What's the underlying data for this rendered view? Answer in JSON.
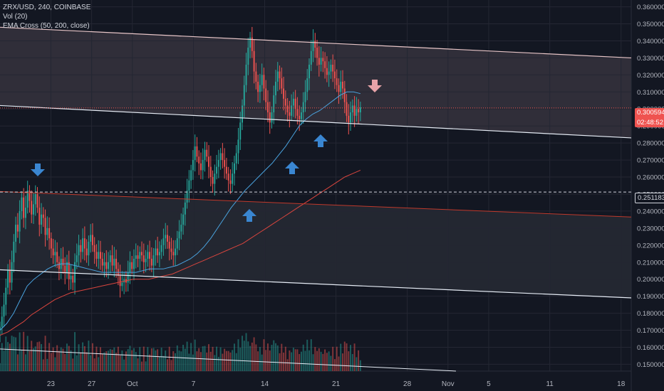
{
  "legend": {
    "symbol_line": "ZRX/USD, 240, COINBASE",
    "vol_line": "Vol (20)",
    "ema_line": "EMA Cross (50, 200, close)"
  },
  "price_badge": {
    "price": "0.300594",
    "countdown": "02:48:52"
  },
  "hline_badge": "0.251183",
  "colors": {
    "bg": "#131722",
    "up": "#26a69a",
    "down": "#ef5350",
    "ema50": "#4aa3df",
    "ema200": "#d9453e",
    "arrow_up": "#3a86d1",
    "arrow_down": "#e8a3a8",
    "channel_upper": "#e8c6c8",
    "channel_lower": "#e6ecf5"
  },
  "chart_data": {
    "type": "candlestick",
    "title": "ZRX/USD, 240, COINBASE",
    "interval": "240",
    "exchange": "COINBASE",
    "ylim": [
      0.146,
      0.364
    ],
    "y_ticks": [
      "0.150000",
      "0.160000",
      "0.170000",
      "0.180000",
      "0.190000",
      "0.200000",
      "0.210000",
      "0.220000",
      "0.230000",
      "0.240000",
      "0.250000",
      "0.260000",
      "0.270000",
      "0.280000",
      "0.290000",
      "0.300000",
      "0.310000",
      "0.320000",
      "0.330000",
      "0.340000",
      "0.350000",
      "0.360000"
    ],
    "x_ticks": [
      "23",
      "27",
      "Oct",
      "7",
      "14",
      "21",
      "28",
      "Nov",
      "5",
      "11",
      "18"
    ],
    "x_tick_days": [
      -8,
      -4,
      0,
      6,
      13,
      20,
      27,
      31,
      35,
      41,
      48
    ],
    "x_range_days": [
      -13,
      49
    ],
    "last_price": 0.300594,
    "horizontal_line": 0.251183,
    "closes": [
      0.172,
      0.178,
      0.185,
      0.195,
      0.205,
      0.198,
      0.21,
      0.222,
      0.232,
      0.228,
      0.24,
      0.248,
      0.236,
      0.242,
      0.252,
      0.246,
      0.238,
      0.244,
      0.25,
      0.242,
      0.232,
      0.238,
      0.236,
      0.226,
      0.23,
      0.224,
      0.218,
      0.214,
      0.216,
      0.21,
      0.206,
      0.212,
      0.208,
      0.204,
      0.21,
      0.2,
      0.202,
      0.198,
      0.21,
      0.214,
      0.22,
      0.216,
      0.224,
      0.218,
      0.214,
      0.222,
      0.226,
      0.22,
      0.216,
      0.212,
      0.216,
      0.212,
      0.208,
      0.21,
      0.206,
      0.21,
      0.214,
      0.208,
      0.212,
      0.206,
      0.202,
      0.196,
      0.198,
      0.2,
      0.198,
      0.204,
      0.21,
      0.206,
      0.212,
      0.214,
      0.212,
      0.216,
      0.214,
      0.21,
      0.212,
      0.216,
      0.212,
      0.208,
      0.214,
      0.218,
      0.214,
      0.216,
      0.22,
      0.224,
      0.226,
      0.222,
      0.218,
      0.216,
      0.214,
      0.218,
      0.224,
      0.228,
      0.232,
      0.238,
      0.245,
      0.252,
      0.258,
      0.264,
      0.27,
      0.278,
      0.272,
      0.268,
      0.264,
      0.27,
      0.276,
      0.272,
      0.266,
      0.26,
      0.256,
      0.262,
      0.266,
      0.27,
      0.274,
      0.27,
      0.266,
      0.262,
      0.258,
      0.256,
      0.262,
      0.268,
      0.274,
      0.282,
      0.292,
      0.302,
      0.314,
      0.326,
      0.336,
      0.342,
      0.334,
      0.322,
      0.316,
      0.31,
      0.314,
      0.32,
      0.312,
      0.304,
      0.298,
      0.292,
      0.298,
      0.308,
      0.316,
      0.322,
      0.318,
      0.312,
      0.306,
      0.302,
      0.298,
      0.296,
      0.302,
      0.306,
      0.3,
      0.296,
      0.294,
      0.298,
      0.304,
      0.31,
      0.318,
      0.326,
      0.334,
      0.34,
      0.336,
      0.33,
      0.326,
      0.33,
      0.328,
      0.324,
      0.32,
      0.322,
      0.326,
      0.322,
      0.318,
      0.314,
      0.31,
      0.316,
      0.312,
      0.304,
      0.296,
      0.292,
      0.298,
      0.302,
      0.296,
      0.3,
      0.298,
      0.301
    ],
    "ema50": [
      0.17,
      0.174,
      0.18,
      0.188,
      0.196,
      0.2,
      0.203,
      0.206,
      0.208,
      0.209,
      0.209,
      0.208,
      0.207,
      0.206,
      0.205,
      0.204,
      0.204,
      0.204,
      0.204,
      0.204,
      0.204,
      0.205,
      0.206,
      0.206,
      0.206,
      0.207,
      0.208,
      0.21,
      0.212,
      0.215,
      0.219,
      0.224,
      0.23,
      0.236,
      0.242,
      0.247,
      0.252,
      0.256,
      0.26,
      0.264,
      0.268,
      0.273,
      0.278,
      0.284,
      0.29,
      0.294,
      0.297,
      0.299,
      0.302,
      0.305,
      0.308,
      0.31,
      0.31,
      0.309
    ],
    "ema200": [
      0.167,
      0.169,
      0.172,
      0.175,
      0.179,
      0.182,
      0.185,
      0.188,
      0.19,
      0.192,
      0.193,
      0.194,
      0.195,
      0.196,
      0.197,
      0.198,
      0.199,
      0.2,
      0.2,
      0.2,
      0.201,
      0.202,
      0.203,
      0.205,
      0.207,
      0.209,
      0.211,
      0.213,
      0.215,
      0.217,
      0.219,
      0.221,
      0.224,
      0.227,
      0.23,
      0.233,
      0.236,
      0.239,
      0.242,
      0.245,
      0.248,
      0.251,
      0.254,
      0.257,
      0.26,
      0.262,
      0.264
    ]
  }
}
